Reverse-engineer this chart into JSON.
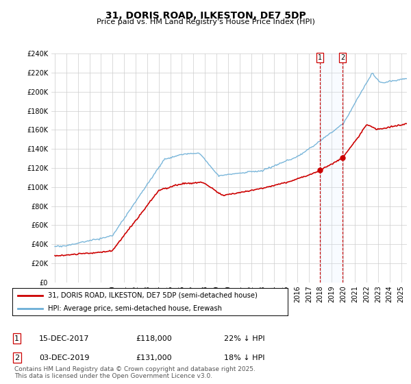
{
  "title": "31, DORIS ROAD, ILKESTON, DE7 5DP",
  "subtitle": "Price paid vs. HM Land Registry's House Price Index (HPI)",
  "ylim": [
    0,
    240000
  ],
  "yticks": [
    0,
    20000,
    40000,
    60000,
    80000,
    100000,
    120000,
    140000,
    160000,
    180000,
    200000,
    220000,
    240000
  ],
  "xlim_start": 1994.7,
  "xlim_end": 2025.5,
  "hpi_color": "#6baed6",
  "price_color": "#cc0000",
  "shade_color": "#ddeeff",
  "marker1_x": 2017.96,
  "marker2_x": 2019.92,
  "marker1_price": 118000,
  "marker2_price": 131000,
  "legend_label1": "31, DORIS ROAD, ILKESTON, DE7 5DP (semi-detached house)",
  "legend_label2": "HPI: Average price, semi-detached house, Erewash",
  "annotation1_label": "1",
  "annotation2_label": "2",
  "note1_num": "1",
  "note1_date": "15-DEC-2017",
  "note1_price": "£118,000",
  "note1_change": "22% ↓ HPI",
  "note2_num": "2",
  "note2_date": "03-DEC-2019",
  "note2_price": "£131,000",
  "note2_change": "18% ↓ HPI",
  "footer": "Contains HM Land Registry data © Crown copyright and database right 2025.\nThis data is licensed under the Open Government Licence v3.0.",
  "bg_color": "#ffffff",
  "grid_color": "#cccccc"
}
